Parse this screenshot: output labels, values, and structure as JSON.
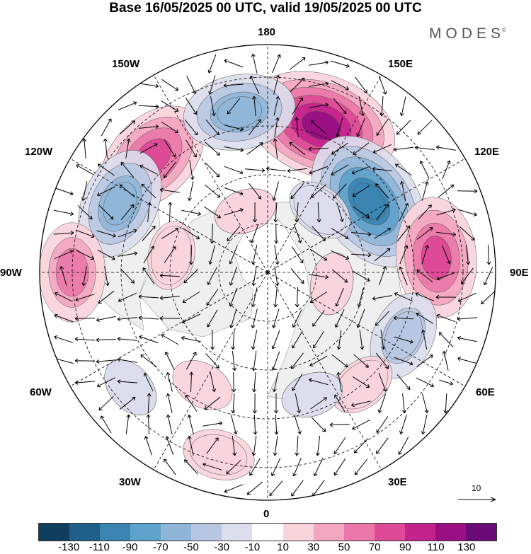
{
  "title": "Base 16/05/2025 00 UTC, valid 19/05/2025 00 UTC",
  "brand": "MODES",
  "brand_mark": "©",
  "longitude_labels": {
    "top": "180",
    "bottom": "0",
    "left": "90W",
    "right": "90E",
    "upper_left_1": "150W",
    "upper_left_2": "120W",
    "upper_right_1": "150E",
    "upper_right_2": "120E",
    "lower_left_1": "60W",
    "lower_left_2": "30W",
    "lower_right_1": "60E",
    "lower_right_2": "30E"
  },
  "vector_scale_label": "10",
  "colorbar": {
    "colors": [
      "#0f3d5c",
      "#1f6089",
      "#3a84b2",
      "#5fa2cb",
      "#8fb6d8",
      "#b9c8e2",
      "#dcdded",
      "#ffffff",
      "#fad4dc",
      "#f3a6bf",
      "#ea78a8",
      "#de4a96",
      "#c4238b",
      "#9a0f82",
      "#6a0b78"
    ],
    "ticks": [
      "-130",
      "-110",
      "-90",
      "-70",
      "-50",
      "-30",
      "-10",
      "10",
      "30",
      "50",
      "70",
      "90",
      "110",
      "130"
    ]
  },
  "map_colors": {
    "land": "#efefef",
    "neutral": "#ffffff"
  },
  "anomalies": [
    {
      "lon": 160,
      "lat": 42,
      "value": 120
    },
    {
      "lon": 125,
      "lat": 52,
      "value": -110
    },
    {
      "lon": 95,
      "lat": 38,
      "value": 80
    },
    {
      "lon": 65,
      "lat": 44,
      "value": -45
    },
    {
      "lon": -135,
      "lat": 40,
      "value": 80
    },
    {
      "lon": -170,
      "lat": 40,
      "value": -70
    },
    {
      "lon": -115,
      "lat": 40,
      "value": -70
    },
    {
      "lon": -90,
      "lat": 30,
      "value": 55
    },
    {
      "lon": -15,
      "lat": 32,
      "value": 28
    },
    {
      "lon": 40,
      "lat": 45,
      "value": 25
    },
    {
      "lon": 20,
      "lat": 50,
      "value": -20
    },
    {
      "lon": -30,
      "lat": 50,
      "value": 18
    },
    {
      "lon": 140,
      "lat": 65,
      "value": -25
    },
    {
      "lon": -160,
      "lat": 70,
      "value": 20
    },
    {
      "lon": 80,
      "lat": 70,
      "value": 20
    },
    {
      "lon": -100,
      "lat": 60,
      "value": 25
    },
    {
      "lon": -50,
      "lat": 35,
      "value": -20
    }
  ]
}
